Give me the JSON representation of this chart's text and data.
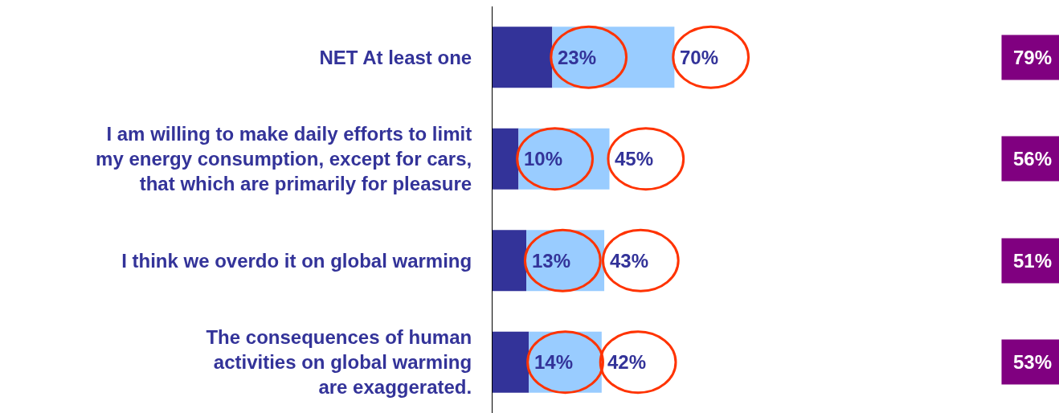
{
  "chart_data": {
    "type": "bar",
    "orientation": "horizontal",
    "stacked": true,
    "categories": [
      "NET At least one",
      "I am willing to make daily efforts to limit\nmy energy consumption, except for cars,\nthat which are primarily for pleasure",
      "I think we overdo it on global warming",
      "The consequences of human\nactivities on global warming\nare exaggerated."
    ],
    "series": [
      {
        "color": "#333399",
        "values": [
          23,
          10,
          13,
          14
        ],
        "value_labels": [
          "23%",
          "10%",
          "13%",
          "14%"
        ]
      },
      {
        "color": "#99ccff",
        "values": [
          47,
          35,
          30,
          28
        ]
      }
    ],
    "totals": [
      "70%",
      "45%",
      "43%",
      "42%"
    ],
    "legend": false,
    "annotations": [
      "79%",
      "56%",
      "51%",
      "53%"
    ]
  }
}
